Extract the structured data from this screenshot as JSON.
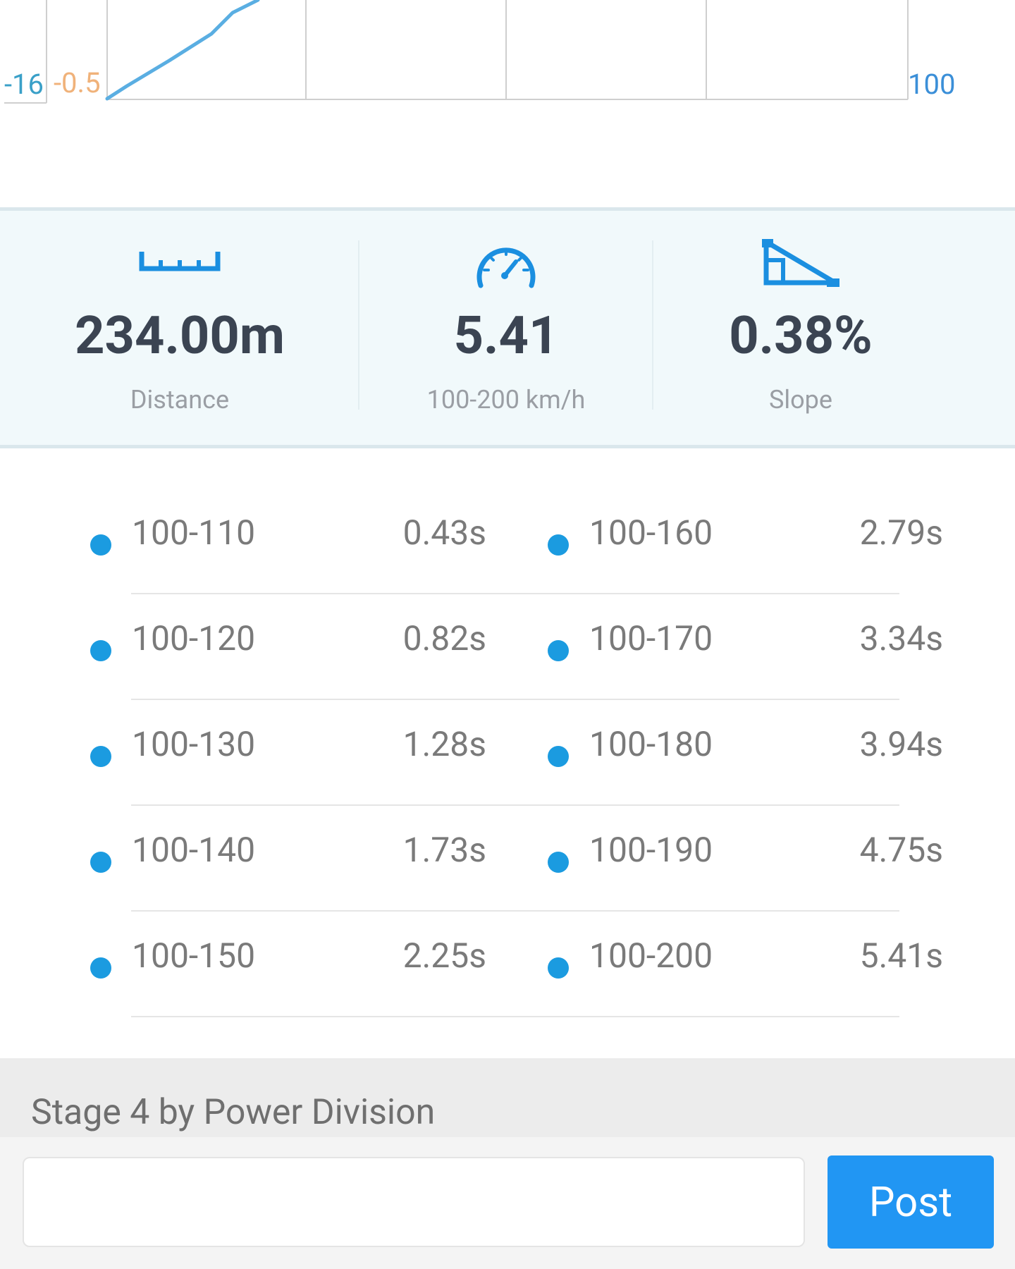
{
  "chart": {
    "left_axis_labels": [
      "-16",
      "-0.5"
    ],
    "right_axis_label": "100",
    "colors": {
      "line": "#5aaee2",
      "grid": "#cfcfcf",
      "left_label_1": "#3aa0c8",
      "left_label_2": "#f0b27a",
      "right_label": "#3b8fd8"
    }
  },
  "summary": {
    "items": [
      {
        "icon": "ruler-icon",
        "value": "234.00m",
        "label": "Distance"
      },
      {
        "icon": "speedometer-icon",
        "value": "5.41",
        "label": "100-200 km/h"
      },
      {
        "icon": "slope-icon",
        "value": "0.38%",
        "label": "Slope"
      }
    ],
    "accent_color": "#1b8fe0"
  },
  "splits": {
    "rows": [
      {
        "left": {
          "range": "100-110",
          "time": "0.43s"
        },
        "right": {
          "range": "100-160",
          "time": "2.79s"
        }
      },
      {
        "left": {
          "range": "100-120",
          "time": "0.82s"
        },
        "right": {
          "range": "100-170",
          "time": "3.34s"
        }
      },
      {
        "left": {
          "range": "100-130",
          "time": "1.28s"
        },
        "right": {
          "range": "100-180",
          "time": "3.94s"
        }
      },
      {
        "left": {
          "range": "100-140",
          "time": "1.73s"
        },
        "right": {
          "range": "100-190",
          "time": "4.75s"
        }
      },
      {
        "left": {
          "range": "100-150",
          "time": "2.25s"
        },
        "right": {
          "range": "100-200",
          "time": "5.41s"
        }
      }
    ],
    "dot_color": "#1b9be0"
  },
  "stage": {
    "title": "Stage 4 by Power Division"
  },
  "comment": {
    "input_value": "",
    "input_placeholder": "",
    "post_label": "Post"
  }
}
